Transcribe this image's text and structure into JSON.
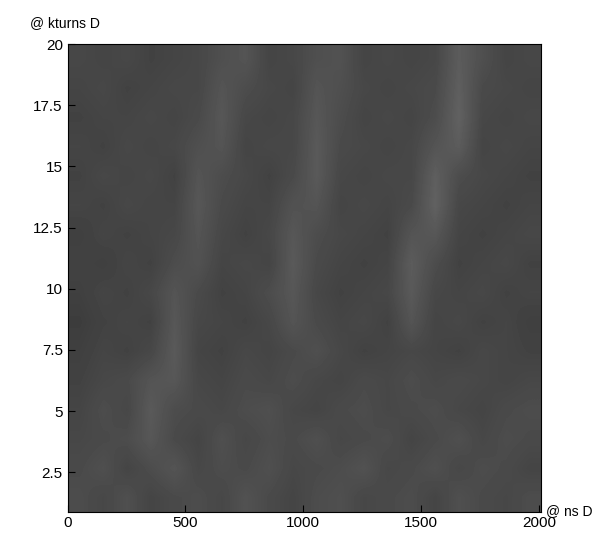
{
  "chart_data": {
    "type": "heatmap",
    "x_label": "@ ns D",
    "y_label": "@ kturns D",
    "xlim": [
      0,
      2010
    ],
    "ylim": [
      0.9,
      20
    ],
    "xticks": [
      0,
      500,
      1000,
      1500,
      2000
    ],
    "yticks": [
      2.5,
      5,
      7.5,
      10,
      12.5,
      15,
      17.5,
      20
    ],
    "zlim": [
      0,
      1
    ],
    "color": "gray",
    "cells": [
      [
        0.3,
        0.28,
        0.31,
        0.27,
        0.29,
        0.3,
        0.28,
        0.32,
        0.29,
        0.27,
        0.3,
        0.31,
        0.28,
        0.29,
        0.3,
        0.27,
        0.31,
        0.29,
        0.28,
        0.3
      ],
      [
        0.29,
        0.31,
        0.27,
        0.3,
        0.33,
        0.28,
        0.3,
        0.29,
        0.31,
        0.28,
        0.29,
        0.3,
        0.32,
        0.28,
        0.29,
        0.31,
        0.28,
        0.3,
        0.29,
        0.27
      ],
      [
        0.28,
        0.29,
        0.3,
        0.34,
        0.29,
        0.27,
        0.31,
        0.28,
        0.3,
        0.29,
        0.31,
        0.28,
        0.29,
        0.3,
        0.27,
        0.29,
        0.31,
        0.28,
        0.3,
        0.29
      ],
      [
        0.27,
        0.3,
        0.28,
        0.35,
        0.3,
        0.29,
        0.28,
        0.3,
        0.31,
        0.28,
        0.27,
        0.29,
        0.3,
        0.28,
        0.29,
        0.3,
        0.28,
        0.27,
        0.29,
        0.3
      ],
      [
        0.26,
        0.28,
        0.29,
        0.33,
        0.34,
        0.28,
        0.27,
        0.29,
        0.28,
        0.3,
        0.28,
        0.27,
        0.29,
        0.28,
        0.3,
        0.28,
        0.29,
        0.28,
        0.27,
        0.28
      ],
      [
        0.25,
        0.27,
        0.26,
        0.28,
        0.35,
        0.27,
        0.26,
        0.28,
        0.27,
        0.29,
        0.31,
        0.28,
        0.26,
        0.27,
        0.28,
        0.27,
        0.26,
        0.28,
        0.27,
        0.26
      ],
      [
        0.24,
        0.26,
        0.27,
        0.26,
        0.34,
        0.28,
        0.27,
        0.26,
        0.28,
        0.33,
        0.29,
        0.27,
        0.28,
        0.26,
        0.33,
        0.27,
        0.28,
        0.26,
        0.27,
        0.25
      ],
      [
        0.25,
        0.27,
        0.26,
        0.28,
        0.33,
        0.29,
        0.26,
        0.27,
        0.3,
        0.34,
        0.28,
        0.26,
        0.27,
        0.28,
        0.35,
        0.28,
        0.27,
        0.28,
        0.26,
        0.27
      ],
      [
        0.26,
        0.25,
        0.27,
        0.26,
        0.3,
        0.32,
        0.27,
        0.28,
        0.27,
        0.35,
        0.29,
        0.27,
        0.26,
        0.27,
        0.36,
        0.3,
        0.26,
        0.27,
        0.28,
        0.26
      ],
      [
        0.25,
        0.27,
        0.26,
        0.27,
        0.28,
        0.33,
        0.28,
        0.26,
        0.28,
        0.34,
        0.3,
        0.28,
        0.27,
        0.26,
        0.33,
        0.34,
        0.27,
        0.26,
        0.27,
        0.28
      ],
      [
        0.27,
        0.26,
        0.28,
        0.27,
        0.27,
        0.34,
        0.29,
        0.27,
        0.27,
        0.32,
        0.33,
        0.27,
        0.28,
        0.27,
        0.29,
        0.38,
        0.28,
        0.27,
        0.26,
        0.27
      ],
      [
        0.26,
        0.28,
        0.27,
        0.28,
        0.26,
        0.33,
        0.3,
        0.28,
        0.26,
        0.29,
        0.35,
        0.28,
        0.27,
        0.28,
        0.28,
        0.37,
        0.3,
        0.28,
        0.27,
        0.26
      ],
      [
        0.27,
        0.26,
        0.28,
        0.27,
        0.28,
        0.31,
        0.33,
        0.27,
        0.28,
        0.28,
        0.35,
        0.29,
        0.28,
        0.27,
        0.28,
        0.33,
        0.36,
        0.27,
        0.28,
        0.27
      ],
      [
        0.26,
        0.27,
        0.27,
        0.28,
        0.27,
        0.29,
        0.34,
        0.28,
        0.27,
        0.28,
        0.34,
        0.3,
        0.27,
        0.28,
        0.27,
        0.3,
        0.38,
        0.28,
        0.27,
        0.28
      ],
      [
        0.27,
        0.28,
        0.26,
        0.27,
        0.28,
        0.28,
        0.33,
        0.3,
        0.28,
        0.27,
        0.33,
        0.31,
        0.28,
        0.27,
        0.28,
        0.29,
        0.37,
        0.29,
        0.28,
        0.27
      ],
      [
        0.28,
        0.27,
        0.28,
        0.26,
        0.27,
        0.28,
        0.31,
        0.33,
        0.27,
        0.28,
        0.31,
        0.32,
        0.27,
        0.28,
        0.27,
        0.28,
        0.36,
        0.31,
        0.27,
        0.28
      ]
    ]
  }
}
